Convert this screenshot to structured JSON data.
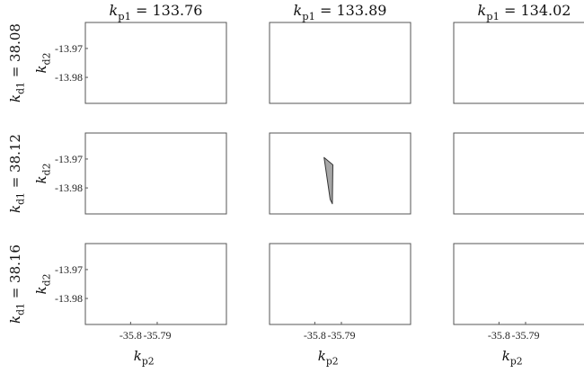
{
  "chart_data": {
    "type": "area",
    "layout": "3x3 grid of small multiples",
    "grid": false,
    "columns": [
      {
        "var": "k",
        "sub": "p1",
        "eq": " = 133.76"
      },
      {
        "var": "k",
        "sub": "p1",
        "eq": " = 133.89"
      },
      {
        "var": "k",
        "sub": "p1",
        "eq": " = 134.02"
      }
    ],
    "rows": [
      {
        "var": "k",
        "sub": "d1",
        "eq": " = 38.08"
      },
      {
        "var": "k",
        "sub": "d1",
        "eq": " = 38.12"
      },
      {
        "var": "k",
        "sub": "d1",
        "eq": " = 38.16"
      }
    ],
    "xlabel": {
      "var": "k",
      "sub": "p2"
    },
    "ylabel": {
      "var": "k",
      "sub": "d2"
    },
    "xlim": [
      -35.817,
      -35.764
    ],
    "ylim": [
      -13.989,
      -13.961
    ],
    "x_ticks": [
      {
        "value": -35.8,
        "label": "-35.8"
      },
      {
        "value": -35.79,
        "label": "-35.79"
      }
    ],
    "y_ticks": [
      {
        "value": -13.97,
        "label": "-13.97"
      },
      {
        "value": -13.98,
        "label": "-13.98"
      }
    ],
    "fill_color": "#a6a6a6",
    "edge_color": "#333333",
    "regions": [
      {
        "row": 1,
        "col": 1,
        "polygon": [
          [
            -35.7965,
            -13.9695
          ],
          [
            -35.7932,
            -13.972
          ],
          [
            -35.7934,
            -13.9855
          ],
          [
            -35.7942,
            -13.984
          ]
        ]
      }
    ]
  }
}
